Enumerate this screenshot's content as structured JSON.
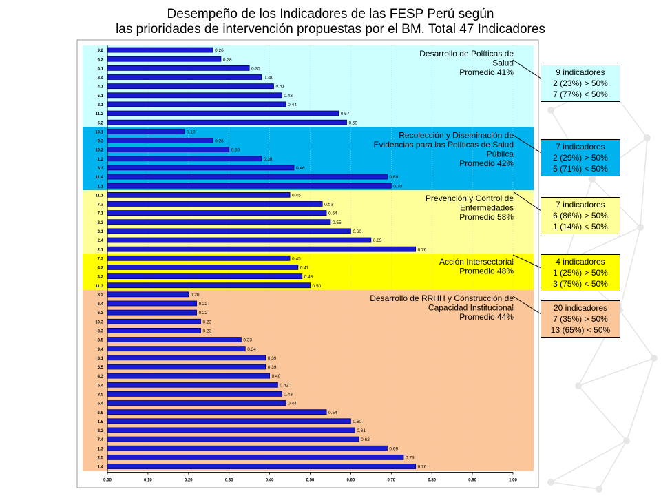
{
  "header": {
    "title_line1": "Desempeño de los Indicadores de las FESP Perú según",
    "title_line2": "las prioridades de intervención propuestas por el BM. Total 47 Indicadores"
  },
  "colors": {
    "bar": "#1a1ad0",
    "bar_dark": "#000066",
    "group1": "#ccffff",
    "group2": "#00b3ee",
    "group3": "#ffff99",
    "group4": "#ffff00",
    "group5": "#fbc79a"
  },
  "chart_data": {
    "type": "bar",
    "orientation": "horizontal",
    "xlim": [
      0,
      1
    ],
    "x_ticks": [
      "0.00",
      "0.10",
      "0.20",
      "0.30",
      "0.40",
      "0.50",
      "0.60",
      "0.70",
      "0.80",
      "0.90",
      "1.00"
    ],
    "categories": [
      "9.2",
      "6.2",
      "6.1",
      "3.4",
      "4.1",
      "5.1",
      "8.1",
      "11.2",
      "5.2",
      "10.1",
      "9.3",
      "10.2",
      "1.2",
      "3.3",
      "11.4",
      "1.1",
      "11.1",
      "7.2",
      "7.1",
      "2.3",
      "3.1",
      "2.4",
      "2.1",
      "7.3",
      "4.2",
      "3.2",
      "11.3",
      "8.2",
      "6.4",
      "6.3",
      "10.3",
      "8.3",
      "8.5",
      "9.4",
      "8.1",
      "5.5",
      "4.3",
      "5.4",
      "3.5",
      "6.4",
      "6.5",
      "1.5",
      "2.2",
      "7.4",
      "1.3",
      "2.5",
      "1.4"
    ],
    "values": [
      0.26,
      0.28,
      0.35,
      0.38,
      0.41,
      0.43,
      0.44,
      0.57,
      0.59,
      0.19,
      0.26,
      0.3,
      0.38,
      0.46,
      0.69,
      0.7,
      0.45,
      0.53,
      0.54,
      0.55,
      0.6,
      0.65,
      0.76,
      0.45,
      0.47,
      0.48,
      0.5,
      0.2,
      0.22,
      0.22,
      0.23,
      0.23,
      0.33,
      0.34,
      0.39,
      0.39,
      0.4,
      0.42,
      0.43,
      0.44,
      0.54,
      0.6,
      0.61,
      0.62,
      0.69,
      0.73,
      0.76
    ],
    "value_labels": [
      "0.26",
      "0.28",
      "0.35",
      "0.38",
      "0.41",
      "0.43",
      "0.44",
      "0.57",
      "0.59",
      "0.19",
      "0.26",
      "0.30",
      "0.38",
      "0.46",
      "0.69",
      "0.70",
      "0.45",
      "0.53",
      "0.54",
      "0.55",
      "0.60",
      "0.65",
      "0.76",
      "0.45",
      "0.47",
      "0.48",
      "0.50",
      "0.20",
      "0.22",
      "0.22",
      "0.23",
      "0.23",
      "0.33",
      "0.34",
      "0.39",
      "0.39",
      "0.40",
      "0.42",
      "0.43",
      "0.44",
      "0.54",
      "0.60",
      "0.61",
      "0.62",
      "0.69",
      "0.73",
      "0.76"
    ],
    "groups": [
      {
        "name": "g1",
        "start": 0,
        "count": 9,
        "color": "#ccffff",
        "lines": [
          "Desarrollo de Políticas de",
          "Salud",
          "Promedio 41%"
        ]
      },
      {
        "name": "g2",
        "start": 9,
        "count": 7,
        "color": "#00b3ee",
        "lines": [
          "Recolección y Diseminación de",
          "Evidencias para las Políticas de Salud",
          "Pública",
          "Promedio 42%"
        ]
      },
      {
        "name": "g3",
        "start": 16,
        "count": 7,
        "color": "#ffff99",
        "lines": [
          "Prevención y Control de",
          "Enfermedades",
          "Promedio 58%"
        ]
      },
      {
        "name": "g4",
        "start": 23,
        "count": 4,
        "color": "#ffff00",
        "lines": [
          "Acción Intersectorial",
          "Promedio 48%"
        ]
      },
      {
        "name": "g5",
        "start": 27,
        "count": 20,
        "color": "#fbc79a",
        "lines": [
          "Desarrollo de RRHH y Construcción de",
          "Capacidad Institucional",
          "Promedio 44%"
        ]
      }
    ]
  },
  "callouts": [
    {
      "color": "#ccffff",
      "lines": [
        "9 indicadores",
        "2 (23%) > 50%",
        "7 (77%) < 50%"
      ]
    },
    {
      "color": "#00b3ee",
      "lines": [
        "7 indicadores",
        "2 (29%) > 50%",
        "5 (71%) < 50%"
      ]
    },
    {
      "color": "#ffff99",
      "lines": [
        "7 indicadores",
        "6 (86%) > 50%",
        "1 (14%) < 50%"
      ]
    },
    {
      "color": "#ffff00",
      "lines": [
        "4 indicadores",
        "1 (25%) > 50%",
        "3 (75%) < 50%"
      ]
    },
    {
      "color": "#fbc79a",
      "lines": [
        "20 indicadores",
        "7 (35%) > 50%",
        "13 (65%) < 50%"
      ]
    }
  ]
}
